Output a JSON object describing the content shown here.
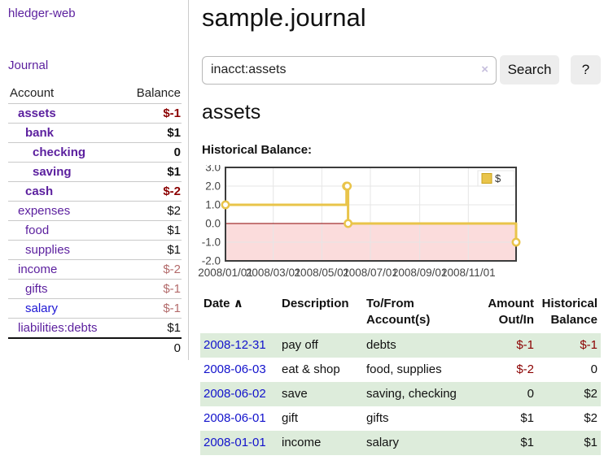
{
  "sidebar": {
    "brand": "hledger-web",
    "journal_link": "Journal",
    "table": {
      "headers": [
        "Account",
        "Balance"
      ],
      "rows": [
        {
          "account": "assets",
          "indent": 1,
          "bold": true,
          "link_color": "purple",
          "balance": "$-1",
          "balance_style": "neg-strong"
        },
        {
          "account": "bank",
          "indent": 2,
          "bold": true,
          "link_color": "purple",
          "balance": "$1",
          "balance_style": "pos"
        },
        {
          "account": "checking",
          "indent": 3,
          "bold": true,
          "link_color": "purple",
          "balance": "0",
          "balance_style": "pos"
        },
        {
          "account": "saving",
          "indent": 3,
          "bold": true,
          "link_color": "purple",
          "balance": "$1",
          "balance_style": "pos"
        },
        {
          "account": "cash",
          "indent": 2,
          "bold": true,
          "link_color": "purple",
          "balance": "$-2",
          "balance_style": "neg-strong"
        },
        {
          "account": "expenses",
          "indent": 1,
          "bold": false,
          "link_color": "purple",
          "balance": "$2",
          "balance_style": "pos"
        },
        {
          "account": "food",
          "indent": 2,
          "bold": false,
          "link_color": "purple",
          "balance": "$1",
          "balance_style": "pos"
        },
        {
          "account": "supplies",
          "indent": 2,
          "bold": false,
          "link_color": "purple",
          "balance": "$1",
          "balance_style": "pos"
        },
        {
          "account": "income",
          "indent": 1,
          "bold": false,
          "link_color": "purple",
          "balance": "$-2",
          "balance_style": "neg-soft"
        },
        {
          "account": "gifts",
          "indent": 2,
          "bold": false,
          "link_color": "purple",
          "balance": "$-1",
          "balance_style": "neg-soft"
        },
        {
          "account": "salary",
          "indent": 2,
          "bold": false,
          "link_color": "blue",
          "balance": "$-1",
          "balance_style": "neg-soft"
        },
        {
          "account": "liabilities:debts",
          "indent": 1,
          "bold": false,
          "link_color": "purple",
          "balance": "$1",
          "balance_style": "pos"
        }
      ],
      "total": "0"
    }
  },
  "header": {
    "title": "sample.journal"
  },
  "search": {
    "value": "inacct:assets",
    "clear_icon": "×",
    "button": "Search",
    "help_button": "?"
  },
  "account_page": {
    "heading": "assets",
    "chart_label": "Historical Balance:"
  },
  "chart_data": {
    "type": "line",
    "title": "Historical Balance",
    "xlim": [
      "2008-01-01",
      "2008-12-31"
    ],
    "ylim": [
      -2,
      3
    ],
    "y_ticks": [
      3.0,
      2.0,
      1.0,
      0.0,
      -1.0,
      -2.0
    ],
    "x_ticks": [
      "2008/01/01",
      "2008/03/01",
      "2008/05/01",
      "2008/07/01",
      "2008/09/01",
      "2008/11/01"
    ],
    "grid": true,
    "legend_position": "top-right",
    "series": [
      {
        "name": "$",
        "color": "#e9c climbed",
        "line_color": "#e9c44a",
        "steps": true,
        "points": [
          [
            "2008-01-01",
            1
          ],
          [
            "2008-06-01",
            2
          ],
          [
            "2008-06-02",
            2
          ],
          [
            "2008-06-03",
            0
          ],
          [
            "2008-12-31",
            -1
          ]
        ]
      }
    ],
    "negative_fill": "#fbdcdc",
    "zero_line_color": "#8b0000",
    "grid_color": "#e6e6e6",
    "border_color": "#3c3c3c",
    "tick_label_color": "#444444"
  },
  "register": {
    "headers": {
      "date": "Date",
      "sort_icon": "∧",
      "description": "Description",
      "accounts": "To/From Account(s)",
      "amount": "Amount Out/In",
      "balance": "Historical Balance"
    },
    "rows": [
      {
        "date": "2008-12-31",
        "description": "pay off",
        "accounts": "debts",
        "amount": "$-1",
        "amount_style": "neg",
        "balance": "$-1",
        "balance_style": "neg",
        "shade": true
      },
      {
        "date": "2008-06-03",
        "description": "eat & shop",
        "accounts": "food, supplies",
        "amount": "$-2",
        "amount_style": "neg",
        "balance": "0",
        "balance_style": "pos",
        "shade": false
      },
      {
        "date": "2008-06-02",
        "description": "save",
        "accounts": "saving, checking",
        "amount": "0",
        "amount_style": "pos",
        "balance": "$2",
        "balance_style": "pos",
        "shade": true
      },
      {
        "date": "2008-06-01",
        "description": "gift",
        "accounts": "gifts",
        "amount": "$1",
        "amount_style": "pos",
        "balance": "$2",
        "balance_style": "pos",
        "shade": false
      },
      {
        "date": "2008-01-01",
        "description": "income",
        "accounts": "salary",
        "amount": "$1",
        "amount_style": "pos",
        "balance": "$1",
        "balance_style": "pos",
        "shade": true
      }
    ]
  }
}
